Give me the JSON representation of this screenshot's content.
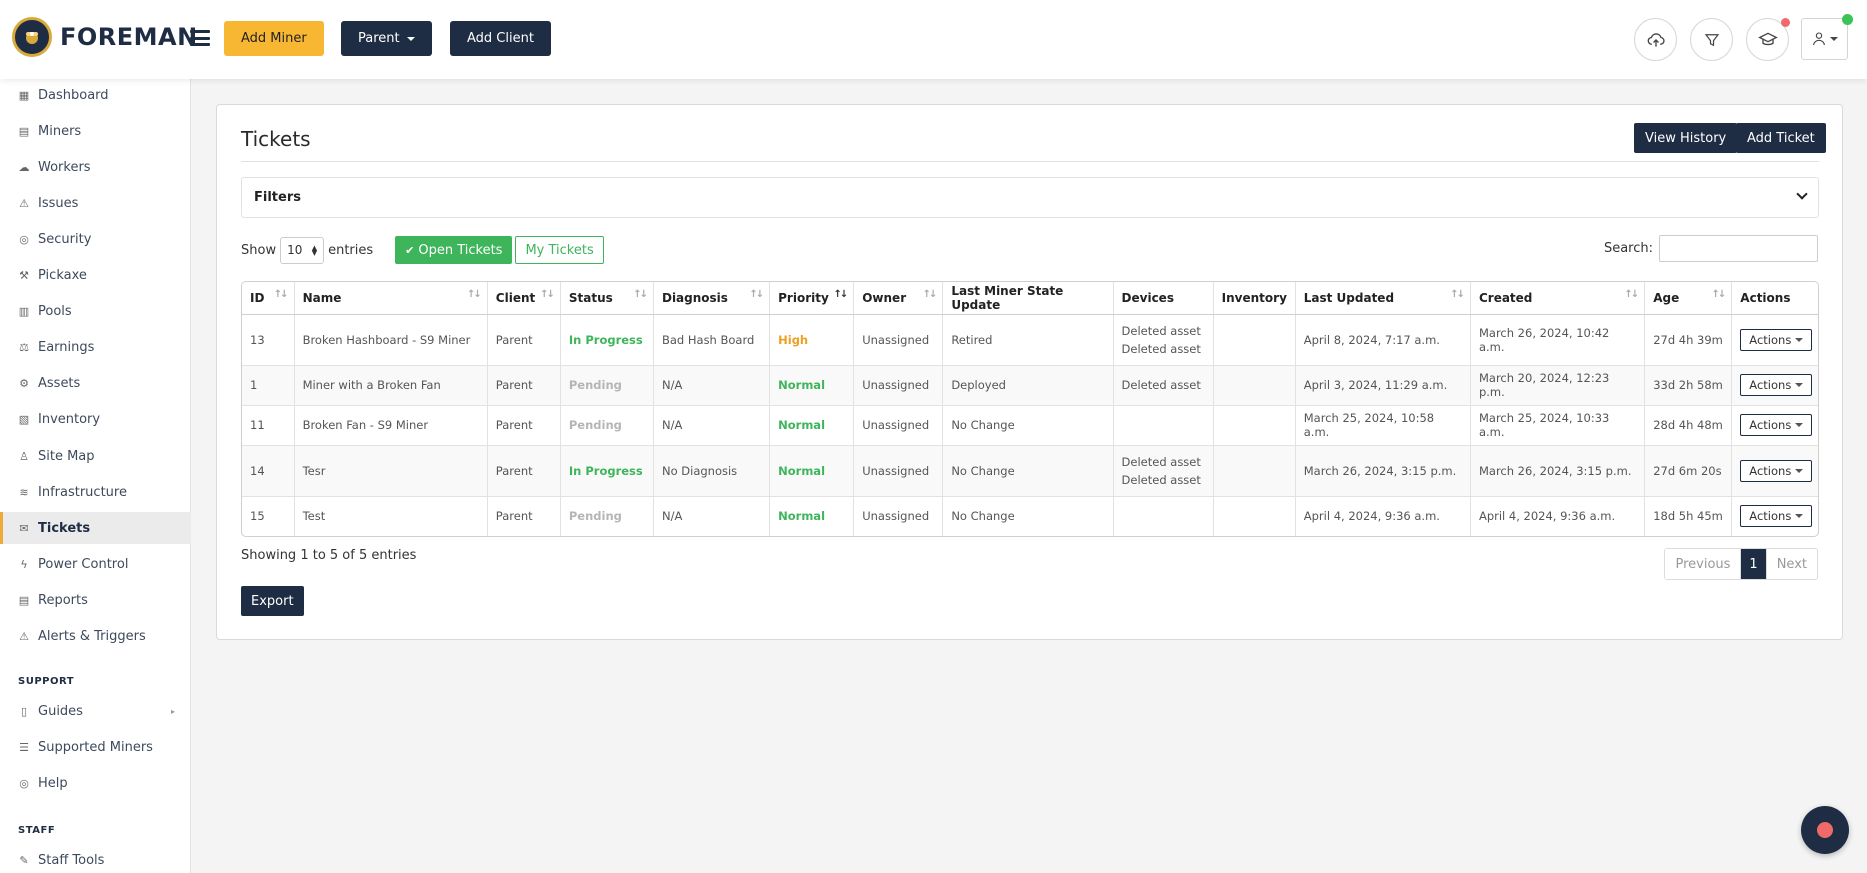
{
  "header": {
    "logo_text": "FOREMAN",
    "add_miner": "Add Miner",
    "parent": "Parent",
    "add_client": "Add Client"
  },
  "sidebar": {
    "items": [
      {
        "label": "Dashboard",
        "icon": "dashboard-icon"
      },
      {
        "label": "Miners",
        "icon": "miners-icon"
      },
      {
        "label": "Workers",
        "icon": "workers-icon"
      },
      {
        "label": "Issues",
        "icon": "warning-icon"
      },
      {
        "label": "Security",
        "icon": "shield-icon"
      },
      {
        "label": "Pickaxe",
        "icon": "pickaxe-icon"
      },
      {
        "label": "Pools",
        "icon": "pools-icon"
      },
      {
        "label": "Earnings",
        "icon": "earnings-icon"
      },
      {
        "label": "Assets",
        "icon": "assets-icon"
      },
      {
        "label": "Inventory",
        "icon": "inventory-icon"
      },
      {
        "label": "Site Map",
        "icon": "site-map-icon"
      },
      {
        "label": "Infrastructure",
        "icon": "infrastructure-icon"
      },
      {
        "label": "Tickets",
        "icon": "tickets-icon",
        "active": true
      },
      {
        "label": "Power Control",
        "icon": "power-icon"
      },
      {
        "label": "Reports",
        "icon": "reports-icon"
      },
      {
        "label": "Alerts & Triggers",
        "icon": "alerts-icon"
      }
    ],
    "support_title": "SUPPORT",
    "support_items": [
      {
        "label": "Guides",
        "icon": "guides-icon"
      },
      {
        "label": "Supported Miners",
        "icon": "list-icon"
      },
      {
        "label": "Help",
        "icon": "help-icon"
      }
    ],
    "staff_title": "STAFF",
    "staff_items": [
      {
        "label": "Staff Tools",
        "icon": "tools-icon"
      }
    ]
  },
  "page": {
    "title": "Tickets",
    "view_history": "View History",
    "add_ticket": "Add Ticket",
    "filters": "Filters",
    "show_label": "Show",
    "entries_value": "10",
    "entries_label": "entries",
    "open_tickets": "Open Tickets",
    "my_tickets": "My Tickets",
    "search_label": "Search:",
    "search_value": "",
    "info": "Showing 1 to 5 of 5 entries",
    "previous": "Previous",
    "current_page": "1",
    "next": "Next",
    "export": "Export"
  },
  "table": {
    "columns": [
      "ID",
      "Name",
      "Client",
      "Status",
      "Diagnosis",
      "Priority",
      "Owner",
      "Last Miner State Update",
      "Devices",
      "Inventory",
      "Last Updated",
      "Created",
      "Age",
      "Actions"
    ],
    "action_label": "Actions",
    "rows": [
      {
        "id": "13",
        "name": "Broken Hashboard - S9 Miner",
        "client": "Parent",
        "status": "In Progress",
        "diagnosis": "Bad Hash Board",
        "priority": "High",
        "owner": "Unassigned",
        "last_state": "Retired",
        "devices": [
          "Deleted asset",
          "Deleted asset"
        ],
        "inventory": "",
        "last_updated": "April 8, 2024, 7:17 a.m.",
        "created": "March 26, 2024, 10:42 a.m.",
        "age": "27d 4h 39m"
      },
      {
        "id": "1",
        "name": "Miner with a Broken Fan",
        "client": "Parent",
        "status": "Pending",
        "diagnosis": "N/A",
        "priority": "Normal",
        "owner": "Unassigned",
        "last_state": "Deployed",
        "devices": [
          "Deleted asset"
        ],
        "inventory": "",
        "last_updated": "April 3, 2024, 11:29 a.m.",
        "created": "March 20, 2024, 12:23 p.m.",
        "age": "33d 2h 58m"
      },
      {
        "id": "11",
        "name": "Broken Fan - S9 Miner",
        "client": "Parent",
        "status": "Pending",
        "diagnosis": "N/A",
        "priority": "Normal",
        "owner": "Unassigned",
        "last_state": "No Change",
        "devices": [],
        "inventory": "",
        "last_updated": "March 25, 2024, 10:58 a.m.",
        "created": "March 25, 2024, 10:33 a.m.",
        "age": "28d 4h 48m"
      },
      {
        "id": "14",
        "name": "Tesr",
        "client": "Parent",
        "status": "In Progress",
        "diagnosis": "No Diagnosis",
        "priority": "Normal",
        "owner": "Unassigned",
        "last_state": "No Change",
        "devices": [
          "Deleted asset",
          "Deleted asset"
        ],
        "inventory": "",
        "last_updated": "March 26, 2024, 3:15 p.m.",
        "created": "March 26, 2024, 3:15 p.m.",
        "age": "27d 6m 20s"
      },
      {
        "id": "15",
        "name": "Test",
        "client": "Parent",
        "status": "Pending",
        "diagnosis": "N/A",
        "priority": "Normal",
        "owner": "Unassigned",
        "last_state": "No Change",
        "devices": [],
        "inventory": "",
        "last_updated": "April 4, 2024, 9:36 a.m.",
        "created": "April 4, 2024, 9:36 a.m.",
        "age": "18d 5h 45m"
      }
    ]
  },
  "colors": {
    "brand_dark": "#1f2d44",
    "accent_yellow": "#f7b733",
    "success_green": "#3eb55b",
    "warning_orange": "#f0a020",
    "pending_gray": "#b5b5b5",
    "alert_red": "#f06a6a"
  }
}
